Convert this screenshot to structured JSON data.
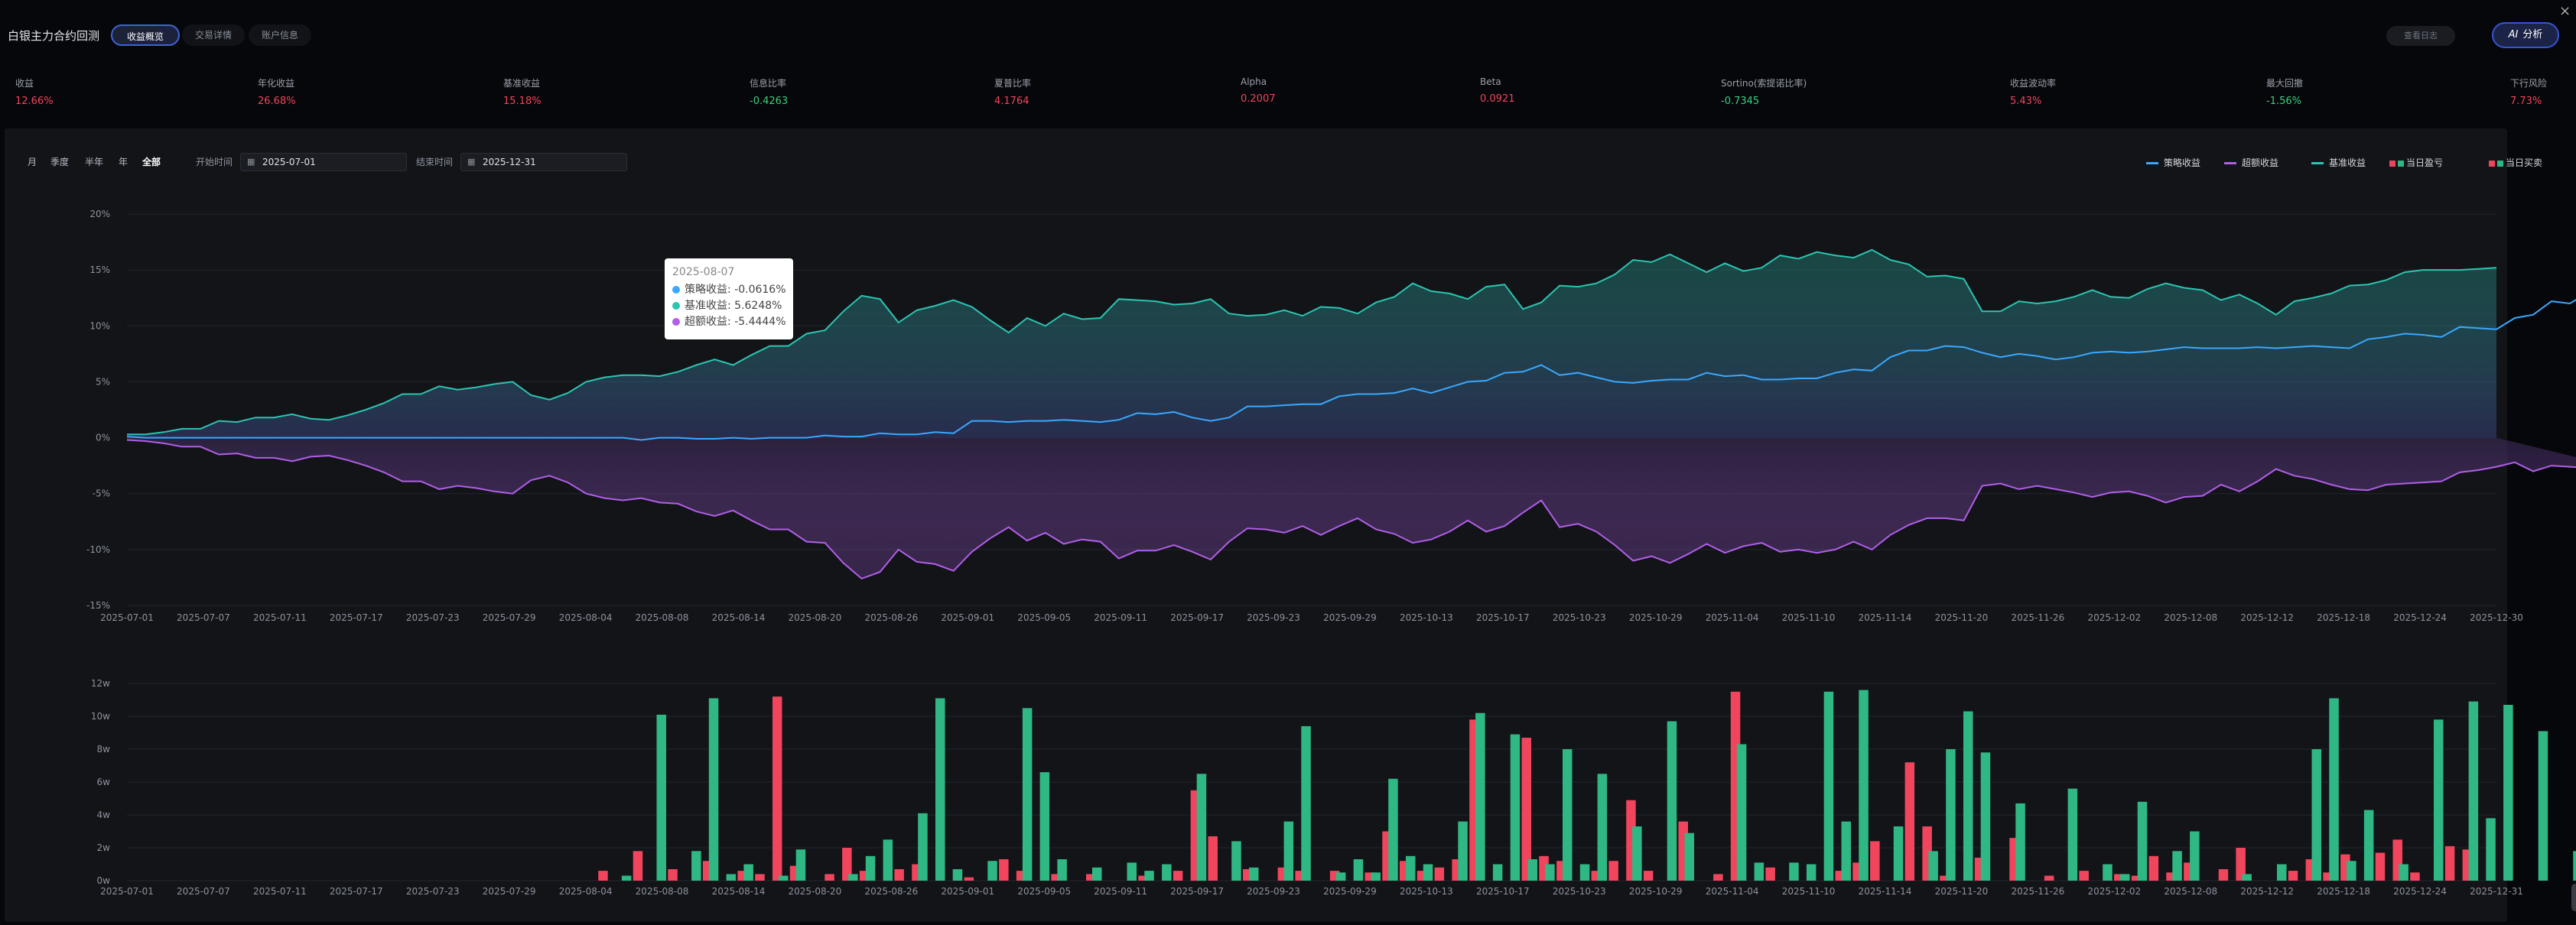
{
  "header": {
    "title": "白银主力合约回测",
    "tabs": [
      "收益概览",
      "交易详情",
      "账户信息"
    ],
    "report_button": "查看日志",
    "analyze_button": "分析",
    "analyze_icon": "AI"
  },
  "metrics": [
    {
      "label": "收益",
      "value": "12.66%",
      "color": "#f0455c"
    },
    {
      "label": "年化收益",
      "value": "26.68%",
      "color": "#f0455c"
    },
    {
      "label": "基准收益",
      "value": "15.18%",
      "color": "#f0455c"
    },
    {
      "label": "信息比率",
      "value": "-0.4263",
      "color": "#3ccf7e"
    },
    {
      "label": "夏普比率",
      "value": "4.1764",
      "color": "#f0455c"
    },
    {
      "label": "Alpha",
      "value": "0.2007",
      "color": "#f0455c"
    },
    {
      "label": "Beta",
      "value": "0.0921",
      "color": "#f0455c"
    },
    {
      "label": "Sortino(索提诺比率)",
      "value": "-0.7345",
      "color": "#3ccf7e"
    },
    {
      "label": "收益波动率",
      "value": "5.43%",
      "color": "#f0455c"
    },
    {
      "label": "最大回撤",
      "value": "-1.56%",
      "color": "#3ccf7e"
    },
    {
      "label": "下行风险",
      "value": "7.73%",
      "color": "#f0455c"
    }
  ],
  "range_buttons": [
    "月",
    "季度",
    "半年",
    "年",
    "全部"
  ],
  "date_filter": {
    "start_label": "开始时间",
    "start_value": "2025-07-01",
    "end_label": "结束时间",
    "end_value": "2025-12-31"
  },
  "legend": [
    {
      "name": "策略收益",
      "color": "#39a8ff",
      "kind": "line"
    },
    {
      "name": "超额收益",
      "color": "#b15ee8",
      "kind": "line"
    },
    {
      "name": "基准收益",
      "color": "#2bc5b0",
      "kind": "line"
    },
    {
      "name": "当日盈亏",
      "color": "#f0455c",
      "kind": "split"
    },
    {
      "name": "当日买卖",
      "color": "#2fb884",
      "kind": "split"
    }
  ],
  "tooltip": {
    "date": "2025-08-07",
    "rows": [
      {
        "text": "策略收益: -0.0616%",
        "color": "#39a8ff"
      },
      {
        "text": "基准收益: 5.6248%",
        "color": "#2bc5b0"
      },
      {
        "text": "超额收益: -5.4444%",
        "color": "#b15ee8"
      }
    ]
  },
  "chart_data": [
    {
      "type": "line",
      "ylim": [
        -15,
        20
      ],
      "y_ticks": [
        "20%",
        "15%",
        "10%",
        "5%",
        "0%",
        "-5%",
        "-10%",
        "-15%"
      ],
      "x_ticks": [
        "2025-07-01",
        "2025-07-07",
        "2025-07-11",
        "2025-07-17",
        "2025-07-23",
        "2025-07-29",
        "2025-08-04",
        "2025-08-08",
        "2025-08-14",
        "2025-08-20",
        "2025-08-26",
        "2025-09-01",
        "2025-09-05",
        "2025-09-11",
        "2025-09-17",
        "2025-09-23",
        "2025-09-29",
        "2025-10-13",
        "2025-10-17",
        "2025-10-23",
        "2025-10-29",
        "2025-11-04",
        "2025-11-10",
        "2025-11-14",
        "2025-11-20",
        "2025-11-26",
        "2025-12-02",
        "2025-12-08",
        "2025-12-12",
        "2025-12-18",
        "2025-12-24",
        "2025-12-30"
      ],
      "grid": true,
      "series": [
        {
          "name": "基准收益",
          "color": "#2bc5b0",
          "values": [
            0.3,
            0.3,
            0.5,
            0.8,
            0.8,
            1.5,
            1.4,
            1.8,
            1.8,
            2.1,
            1.7,
            1.6,
            2.0,
            2.5,
            3.1,
            3.9,
            3.9,
            4.6,
            4.3,
            4.5,
            4.8,
            5.0,
            3.8,
            3.4,
            4.0,
            5.0,
            5.4,
            5.6,
            5.6,
            5.5,
            5.9,
            6.5,
            7.0,
            6.5,
            7.4,
            8.2,
            8.2,
            9.3,
            9.6,
            11.3,
            12.7,
            12.4,
            10.3,
            11.4,
            11.8,
            12.3,
            11.7,
            10.5,
            9.4,
            10.7,
            10.0,
            11.1,
            10.6,
            10.7,
            12.4,
            12.3,
            12.2,
            11.9,
            12.0,
            12.4,
            11.1,
            10.9,
            11.0,
            11.4,
            10.9,
            11.7,
            11.6,
            11.1,
            12.1,
            12.6,
            13.8,
            13.1,
            12.9,
            12.4,
            13.5,
            13.7,
            11.5,
            12.1,
            13.6,
            13.5,
            13.8,
            14.6,
            15.9,
            15.7,
            16.4,
            15.6,
            14.8,
            15.6,
            14.9,
            15.2,
            16.3,
            16.0,
            16.6,
            16.3,
            16.1,
            16.8,
            15.9,
            15.5,
            14.4,
            14.5,
            14.2,
            11.3,
            11.3,
            12.2,
            12.0,
            12.2,
            12.6,
            13.2,
            12.6,
            12.5,
            13.3,
            13.8,
            13.4,
            13.2,
            12.3,
            12.8,
            12.0,
            11.0,
            12.2,
            12.5,
            12.9,
            13.6,
            13.7,
            14.1,
            14.8,
            15.0,
            15.0,
            15.0,
            15.1,
            15.2
          ]
        },
        {
          "name": "策略收益",
          "color": "#39a8ff",
          "values": [
            0.1,
            0,
            0,
            0,
            0,
            0,
            0,
            0,
            0,
            0,
            0,
            0,
            0,
            0,
            0,
            0,
            0,
            0,
            0,
            0,
            0,
            0,
            0,
            0,
            0,
            0,
            0,
            0,
            -0.2,
            0,
            0,
            -0.1,
            -0.1,
            0,
            -0.1,
            0,
            0,
            0,
            0.2,
            0.1,
            0.1,
            0.4,
            0.3,
            0.3,
            0.5,
            0.4,
            1.5,
            1.5,
            1.4,
            1.5,
            1.5,
            1.6,
            1.5,
            1.4,
            1.6,
            2.2,
            2.1,
            2.3,
            1.8,
            1.5,
            1.8,
            2.8,
            2.8,
            2.9,
            3.0,
            3.0,
            3.7,
            3.9,
            3.9,
            4.0,
            4.4,
            4.0,
            4.5,
            5.0,
            5.1,
            5.8,
            5.9,
            6.5,
            5.6,
            5.8,
            5.4,
            5.0,
            4.9,
            5.1,
            5.2,
            5.2,
            5.8,
            5.5,
            5.6,
            5.2,
            5.2,
            5.3,
            5.3,
            5.8,
            6.1,
            6.0,
            7.2,
            7.8,
            7.8,
            8.2,
            8.1,
            7.6,
            7.2,
            7.5,
            7.3,
            7.0,
            7.2,
            7.6,
            7.7,
            7.6,
            7.7,
            7.9,
            8.1,
            8.0,
            8.0,
            8.0,
            8.1,
            8.0,
            8.1,
            8.2,
            8.1,
            8.0,
            8.8,
            9.0,
            9.3,
            9.2,
            9.0,
            9.9,
            9.8,
            9.7,
            10.7,
            11.0,
            12.2,
            12.0,
            13.0,
            12.7,
            12.5,
            12.6,
            12.8
          ]
        },
        {
          "name": "超额收益",
          "color": "#b15ee8",
          "values": [
            -0.2,
            -0.3,
            -0.5,
            -0.8,
            -0.8,
            -1.5,
            -1.4,
            -1.8,
            -1.8,
            -2.1,
            -1.7,
            -1.6,
            -2.0,
            -2.5,
            -3.1,
            -3.9,
            -3.9,
            -4.6,
            -4.3,
            -4.5,
            -4.8,
            -5.0,
            -3.8,
            -3.4,
            -4.0,
            -5.0,
            -5.4,
            -5.6,
            -5.4,
            -5.8,
            -5.9,
            -6.6,
            -7.0,
            -6.5,
            -7.4,
            -8.2,
            -8.2,
            -9.3,
            -9.4,
            -11.2,
            -12.6,
            -12.0,
            -10.0,
            -11.1,
            -11.3,
            -11.9,
            -10.2,
            -9.0,
            -8.0,
            -9.2,
            -8.5,
            -9.5,
            -9.1,
            -9.3,
            -10.8,
            -10.1,
            -10.1,
            -9.6,
            -10.2,
            -10.9,
            -9.3,
            -8.1,
            -8.2,
            -8.5,
            -7.9,
            -8.7,
            -7.9,
            -7.2,
            -8.2,
            -8.6,
            -9.4,
            -9.1,
            -8.4,
            -7.4,
            -8.4,
            -7.9,
            -6.7,
            -5.6,
            -8.0,
            -7.7,
            -8.4,
            -9.6,
            -11.0,
            -10.6,
            -11.2,
            -10.4,
            -9.5,
            -10.3,
            -9.7,
            -9.4,
            -10.2,
            -10.0,
            -10.3,
            -10.0,
            -9.3,
            -10.0,
            -8.7,
            -7.8,
            -7.2,
            -7.2,
            -7.4,
            -4.3,
            -4.1,
            -4.6,
            -4.3,
            -4.6,
            -4.9,
            -5.3,
            -4.9,
            -4.8,
            -5.2,
            -5.8,
            -5.3,
            -5.2,
            -4.2,
            -4.8,
            -3.9,
            -2.8,
            -3.4,
            -3.7,
            -4.2,
            -4.6,
            -4.7,
            -4.2,
            -4.1,
            -4.0,
            -3.9,
            -3.1,
            -2.9,
            -2.6,
            -2.2,
            -3.0,
            -2.5,
            -2.6,
            -2.7,
            -2.4
          ]
        }
      ]
    },
    {
      "type": "bar",
      "ylim": [
        0,
        12
      ],
      "y_ticks": [
        "12w",
        "10w",
        "8w",
        "6w",
        "4w",
        "2w",
        "0w"
      ],
      "x_ticks": [
        "2025-07-01",
        "2025-07-07",
        "2025-07-11",
        "2025-07-17",
        "2025-07-23",
        "2025-07-29",
        "2025-08-04",
        "2025-08-08",
        "2025-08-14",
        "2025-08-20",
        "2025-08-26",
        "2025-09-01",
        "2025-09-05",
        "2025-09-11",
        "2025-09-17",
        "2025-09-23",
        "2025-09-29",
        "2025-10-13",
        "2025-10-17",
        "2025-10-23",
        "2025-10-29",
        "2025-11-04",
        "2025-11-10",
        "2025-11-14",
        "2025-11-20",
        "2025-11-26",
        "2025-12-02",
        "2025-12-08",
        "2025-12-12",
        "2025-12-18",
        "2025-12-24",
        "2025-12-31"
      ],
      "grid": true,
      "series": [
        {
          "name": "当日盈亏",
          "color": "#f0455c",
          "values": [
            0,
            0,
            0,
            0,
            0,
            0,
            0,
            0,
            0,
            0,
            0,
            0,
            0,
            0,
            0,
            0,
            0,
            0,
            0,
            0,
            0,
            0,
            0,
            0,
            0,
            0,
            0,
            0.6,
            0,
            1.8,
            0,
            0.7,
            0,
            1.2,
            0,
            0.6,
            0.4,
            11.2,
            0.9,
            0,
            0.4,
            2.0,
            0.6,
            0,
            0.7,
            1.0,
            0,
            0,
            0.2,
            0,
            1.3,
            0.6,
            0,
            0.4,
            0,
            0.4,
            0,
            0,
            0.3,
            0,
            0.6,
            5.5,
            2.7,
            0,
            0.7,
            0,
            0.8,
            0.6,
            0,
            0.6,
            0,
            0.5,
            3.0,
            1.2,
            0.6,
            0.8,
            1.3,
            9.8,
            0,
            0,
            8.7,
            1.5,
            1.2,
            0,
            0.6,
            1.2,
            4.9,
            0.6,
            0,
            3.6,
            0,
            0.4,
            11.5,
            0,
            0.8,
            0,
            0,
            0,
            0.6,
            1.1,
            2.4,
            0,
            7.2,
            3.3,
            0.3,
            0,
            1.4,
            0,
            2.6,
            0,
            0.3,
            0,
            0.6,
            0,
            0.4,
            0.3,
            1.5,
            0.5,
            1.1,
            0,
            0.7,
            2.0,
            0,
            0,
            0.6,
            1.3,
            0.5,
            1.6,
            0,
            1.7,
            2.5,
            0.5,
            0,
            2.1,
            1.9,
            0
          ]
        },
        {
          "name": "当日买卖",
          "color": "#2fb884",
          "values": [
            0,
            0,
            0,
            0,
            0,
            0,
            0,
            0,
            0,
            0,
            0,
            0,
            0,
            0,
            0,
            0,
            0,
            0,
            0,
            0,
            0,
            0,
            0,
            0,
            0,
            0,
            0,
            0,
            0.3,
            0,
            10.1,
            0,
            1.8,
            11.1,
            0.4,
            1.0,
            0,
            0.3,
            1.9,
            0,
            0,
            0.4,
            1.5,
            2.5,
            0,
            4.1,
            11.1,
            0.7,
            0,
            1.2,
            0,
            10.5,
            6.6,
            1.3,
            0,
            0.8,
            0,
            1.1,
            0.6,
            1.0,
            0,
            6.5,
            0,
            2.4,
            0.8,
            0,
            3.6,
            9.4,
            0,
            0.5,
            1.3,
            0.5,
            6.2,
            1.5,
            1.0,
            0,
            3.6,
            10.2,
            1.0,
            8.9,
            1.3,
            1.0,
            8.0,
            1.0,
            6.5,
            0,
            3.3,
            0,
            9.7,
            2.9,
            0,
            0,
            8.3,
            1.1,
            0,
            1.1,
            1.0,
            11.5,
            3.6,
            11.6,
            0,
            3.3,
            0,
            1.8,
            8.0,
            10.3,
            7.8,
            0,
            4.7,
            0,
            0,
            5.6,
            0,
            1.0,
            0.4,
            4.8,
            0,
            1.8,
            3.0,
            0,
            0,
            0.4,
            0,
            1.0,
            0,
            8.0,
            11.1,
            1.2,
            4.3,
            0,
            1.0,
            0,
            9.8,
            0,
            10.9,
            3.8,
            10.7,
            0,
            9.1,
            0,
            1.8,
            0,
            1.6,
            0
          ]
        }
      ]
    }
  ]
}
